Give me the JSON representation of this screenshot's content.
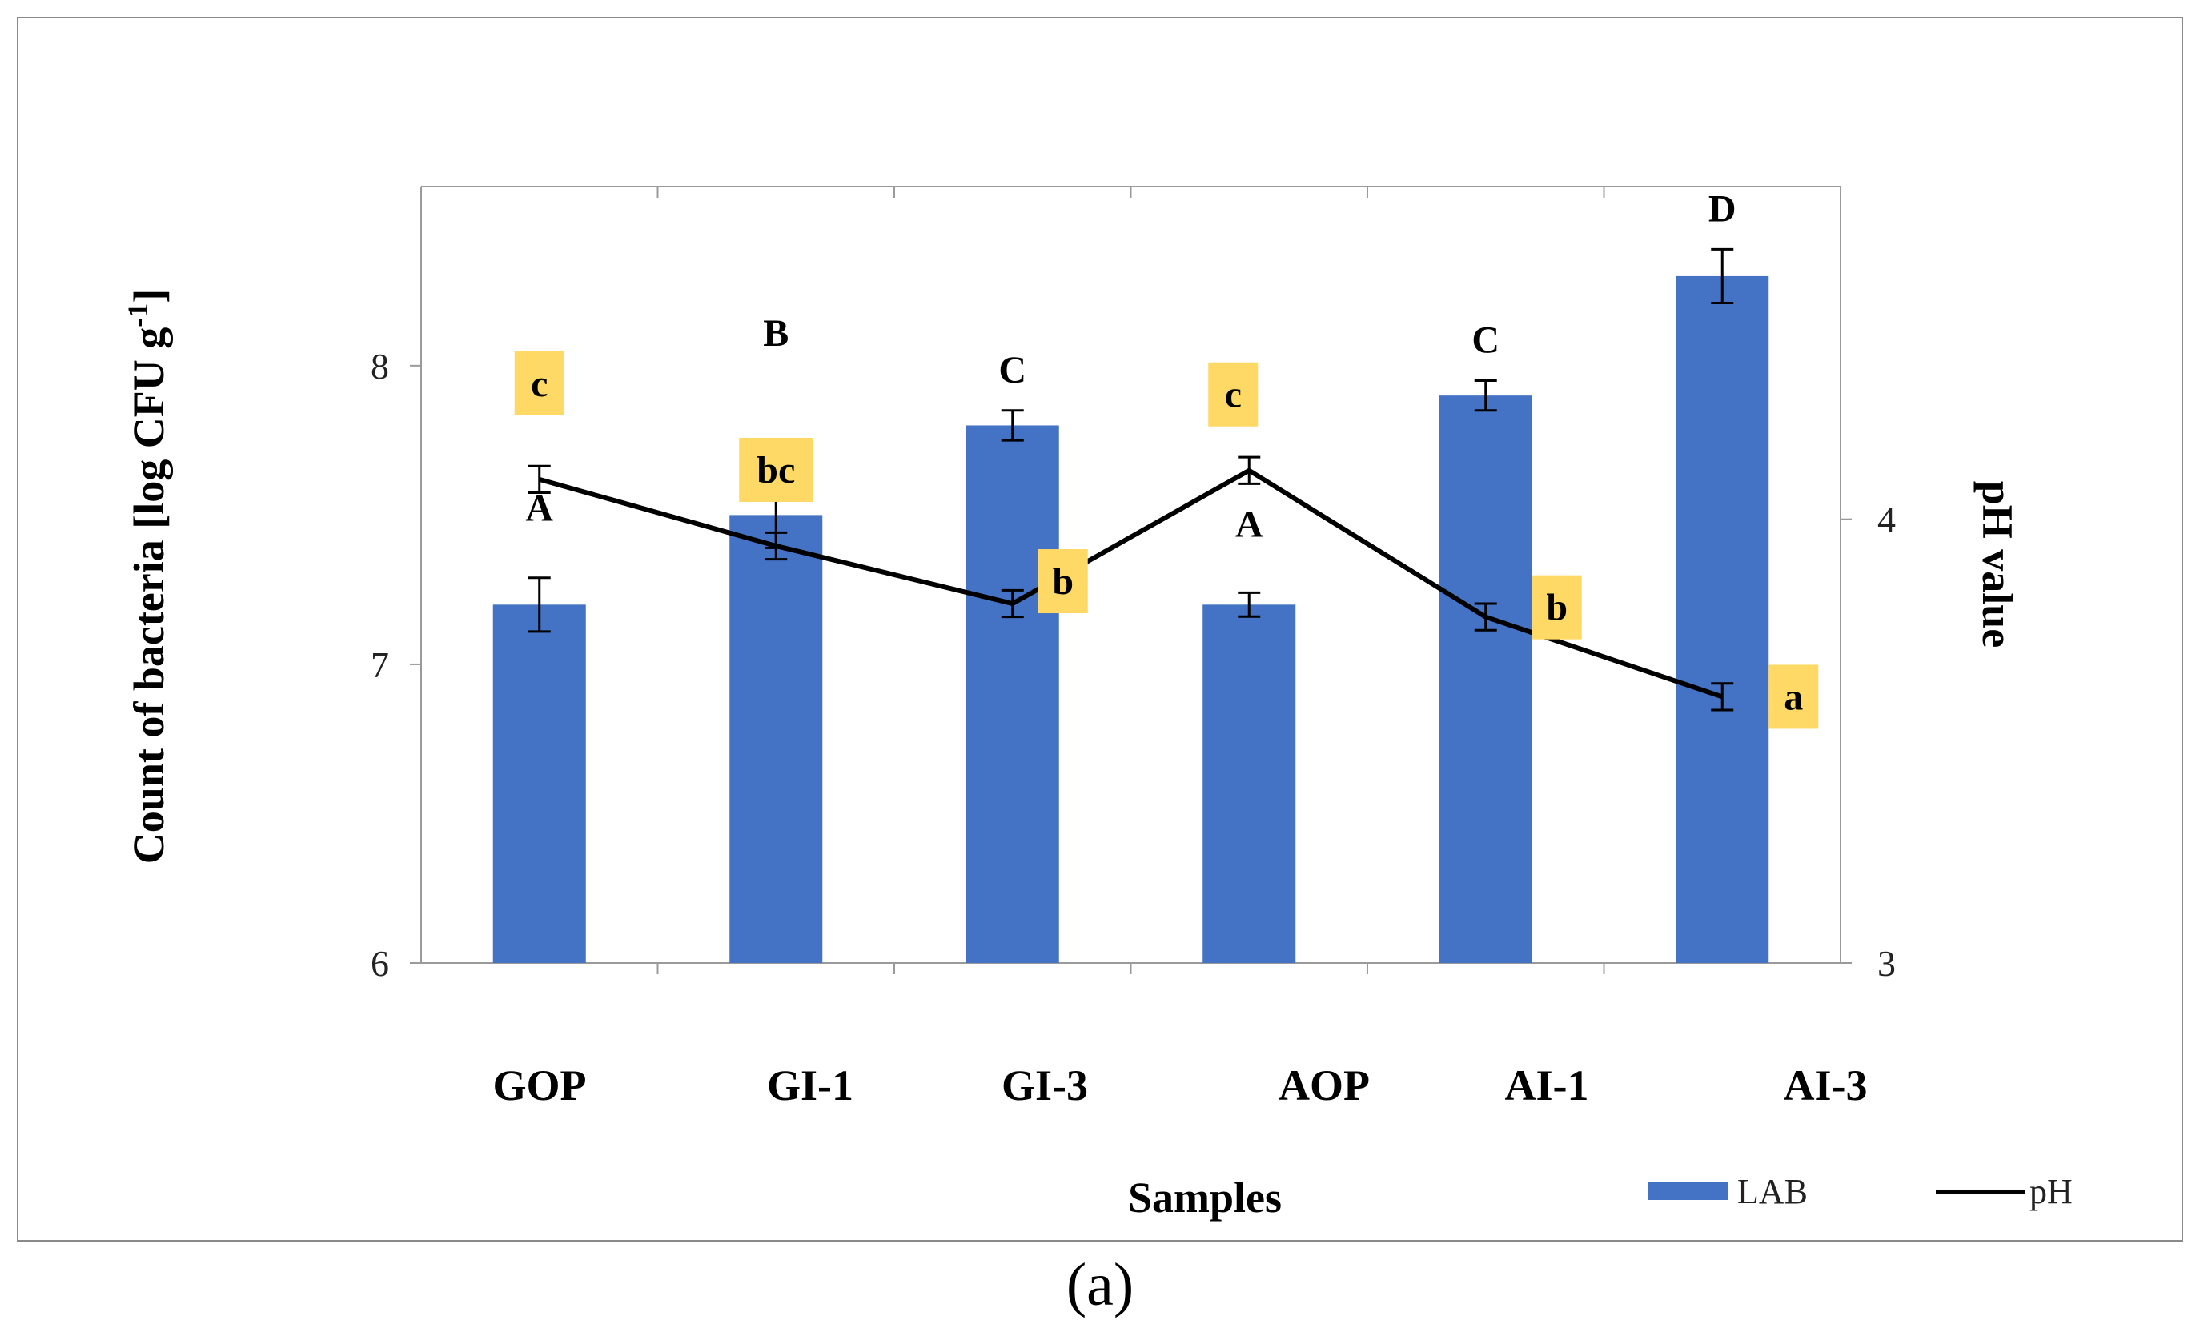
{
  "chart_data": {
    "type": "bar+line",
    "xlabel": "Samples",
    "ylabel_left": "Count of bacteria [log CFU g",
    "ylabel_left_sup": "-1",
    "ylabel_left_end": "]",
    "ylabel_right": "pH value",
    "categories": [
      "GOP",
      "GI-1",
      "GI-3",
      "AOP",
      "AI-1",
      "AI-3"
    ],
    "ylim_left": [
      6,
      8.6
    ],
    "yticks_left": [
      6,
      7,
      8
    ],
    "ylim_right": [
      3,
      4.75
    ],
    "yticks_right": [
      3,
      4
    ],
    "series": [
      {
        "name": "LAB",
        "kind": "bar",
        "axis": "left",
        "color": "#4472C4",
        "values": [
          7.2,
          7.5,
          7.8,
          7.2,
          7.9,
          8.3
        ],
        "errors": [
          0.09,
          0.11,
          0.05,
          0.04,
          0.05,
          0.09
        ],
        "letters": [
          "A",
          "B",
          "C",
          "A",
          "C",
          "D"
        ]
      },
      {
        "name": "pH",
        "kind": "line",
        "axis": "right",
        "color": "#000000",
        "values": [
          4.09,
          3.94,
          3.81,
          4.11,
          3.78,
          3.6
        ],
        "errors": [
          0.03,
          0.03,
          0.03,
          0.03,
          0.03,
          0.03
        ],
        "letters": [
          "c",
          "bc",
          "b",
          "c",
          "b",
          "a"
        ]
      }
    ],
    "legend": [
      "LAB",
      "pH"
    ],
    "legend_position": "bottom-right",
    "letter_box_color": "#FFD966"
  },
  "panel_label": "(a)"
}
